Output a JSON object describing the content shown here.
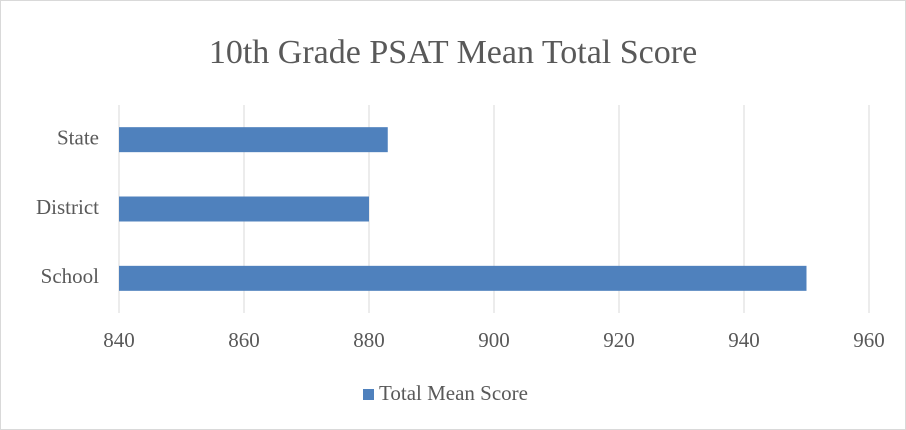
{
  "chart_data": {
    "type": "bar",
    "orientation": "horizontal",
    "title": "10th Grade PSAT Mean Total Score",
    "categories": [
      "State",
      "District",
      "School"
    ],
    "series": [
      {
        "name": "Total Mean Score",
        "color": "#4f81bd",
        "values": [
          883,
          880,
          950
        ]
      }
    ],
    "xlim": [
      840,
      960
    ],
    "xticks": [
      840,
      860,
      880,
      900,
      920,
      940,
      960
    ],
    "grid": true,
    "legend": "bottom"
  }
}
